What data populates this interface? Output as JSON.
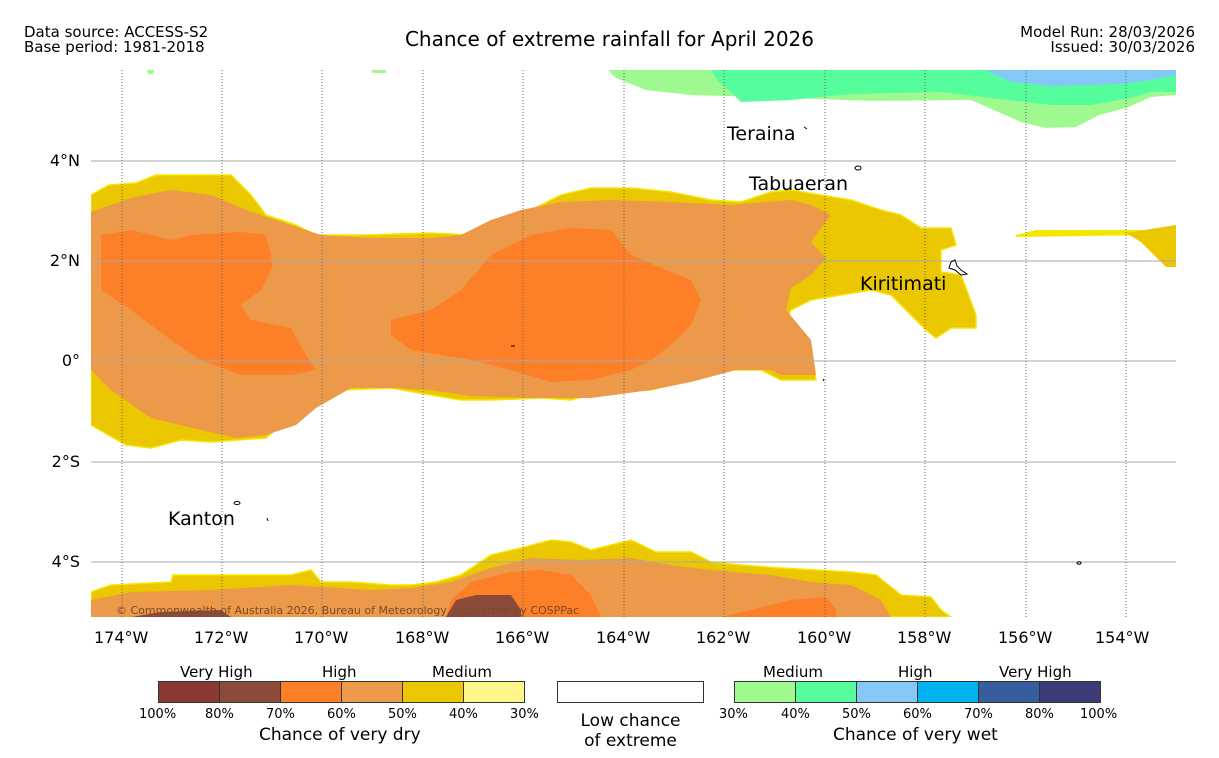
{
  "header": {
    "data_source": "Data source: ACCESS-S2",
    "base_period": "Base period: 1981-2018",
    "title": "Chance of extreme rainfall for April 2026",
    "model_run": "Model Run: 28/03/2026",
    "issued": "Issued: 30/03/2026"
  },
  "map": {
    "places": [
      "Teraina",
      "Tabuaeran",
      "Kiritimati",
      "Kanton"
    ],
    "copyright": "© Commonwealth of Australia 2026, Bureau of Meteorology, supported by COSPPac",
    "lat_labels": [
      "4°N",
      "2°N",
      "0°",
      "2°S",
      "4°S"
    ],
    "lon_labels": [
      "174°W",
      "172°W",
      "170°W",
      "168°W",
      "166°W",
      "164°W",
      "162°W",
      "160°W",
      "158°W",
      "156°W",
      "154°W"
    ]
  },
  "legend": {
    "dry": {
      "levels": [
        "Very High",
        "High",
        "Medium"
      ],
      "ticks": [
        "100%",
        "80%",
        "70%",
        "60%",
        "50%",
        "40%",
        "30%"
      ],
      "title": "Chance of very dry",
      "colors": [
        "#8b3a32",
        "#8b4a3a",
        "#fd7f27",
        "#ec9a4a",
        "#eac700",
        "#fff68a"
      ]
    },
    "low": {
      "line1": "Low chance",
      "line2": "of extreme"
    },
    "wet": {
      "levels": [
        "Medium",
        "High",
        "Very High"
      ],
      "ticks": [
        "30%",
        "40%",
        "50%",
        "60%",
        "70%",
        "80%",
        "100%"
      ],
      "title": "Chance of very wet",
      "colors": [
        "#9efa8e",
        "#55fd9c",
        "#85c8f7",
        "#00b2ee",
        "#355d9f",
        "#3d3a78"
      ]
    }
  }
}
